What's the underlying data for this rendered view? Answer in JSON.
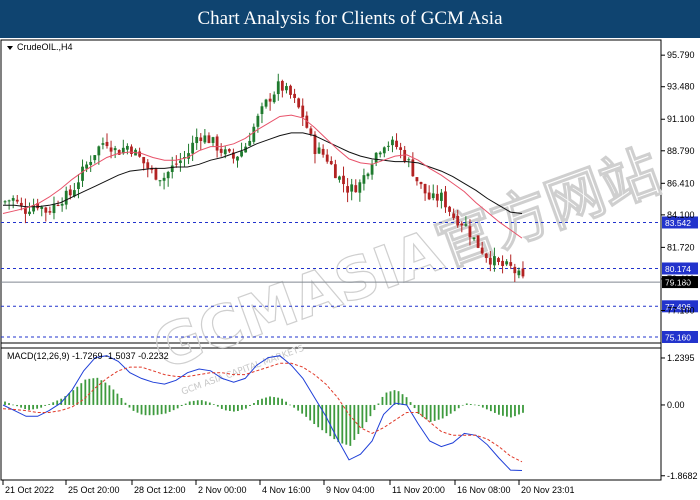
{
  "header": {
    "title": "Chart Analysis for Clients of GCM Asia"
  },
  "watermark": {
    "main": "GCMASIA官方网站",
    "sub": "GCM ASIA CAPITAL MARKETS"
  },
  "colors": {
    "header_bg": "#0f4470",
    "bull": "#1f7a2e",
    "bear": "#b22222",
    "ma_fast": "#e8526a",
    "ma_slow": "#111111",
    "level_line": "#2233cc",
    "macd_line": "#1f3fd8",
    "signal_line": "#e03a2a",
    "histogram": "#3d9a3d",
    "current_price": "#808890"
  },
  "chart_data": {
    "type": "candlestick",
    "symbol_label": "CrudeOIL.,H4",
    "y_ticks": [
      "95.790",
      "93.480",
      "91.100",
      "88.790",
      "86.410",
      "84.100",
      "81.720",
      "79.410",
      "77.100"
    ],
    "y_range": [
      74.72,
      96.9
    ],
    "x_ticks": [
      "21 Oct 2022",
      "25 Oct 20:00",
      "28 Oct 12:00",
      "2 Nov 00:00",
      "4 Nov 16:00",
      "9 Nov 04:00",
      "11 Nov 20:00",
      "16 Nov 08:00",
      "20 Nov 23:01"
    ],
    "levels": [
      {
        "label": "83.542",
        "value": 83.542
      },
      {
        "label": "80.174",
        "value": 80.174
      },
      {
        "label": "77.406",
        "value": 77.406
      },
      {
        "label": "75.160",
        "value": 75.16
      }
    ],
    "current_price": {
      "label": "79.180",
      "value": 79.18
    },
    "price_path": [
      85.0,
      85.3,
      84.4,
      85.0,
      84.3,
      85.2,
      85.6,
      87.2,
      88.6,
      89.6,
      88.7,
      89.2,
      88.2,
      87.2,
      86.8,
      87.8,
      88.4,
      90.0,
      89.6,
      88.8,
      88.2,
      89.0,
      90.9,
      92.5,
      93.6,
      92.8,
      91.4,
      89.0,
      88.4,
      87.0,
      85.9,
      86.4,
      88.2,
      89.4,
      89.2,
      88.2,
      86.4,
      85.2,
      85.4,
      84.0,
      83.4,
      82.0,
      81.0,
      80.4,
      80.2,
      79.3
    ],
    "ma_fast": [
      84.2,
      84.4,
      84.6,
      84.9,
      85.4,
      86.0,
      86.7,
      87.3,
      87.8,
      88.3,
      88.6,
      88.7,
      88.6,
      88.3,
      88.1,
      88.1,
      88.3,
      88.8,
      89.1,
      89.1,
      89.3,
      89.7,
      90.3,
      90.8,
      91.3,
      91.4,
      91.2,
      90.5,
      89.7,
      88.9,
      88.2,
      87.9,
      87.8,
      88.1,
      88.4,
      88.5,
      88.1,
      87.5,
      87.0,
      86.4,
      85.8,
      85.0,
      84.3,
      83.6,
      83.0,
      82.4
    ],
    "ma_slow": [
      84.8,
      84.8,
      84.7,
      84.7,
      84.8,
      85.0,
      85.4,
      85.8,
      86.2,
      86.6,
      87.0,
      87.3,
      87.4,
      87.5,
      87.5,
      87.6,
      87.6,
      87.8,
      88.1,
      88.3,
      88.6,
      88.9,
      89.3,
      89.6,
      89.9,
      90.1,
      90.1,
      89.9,
      89.5,
      89.1,
      88.7,
      88.4,
      88.2,
      88.1,
      88.0,
      88.0,
      87.9,
      87.6,
      87.3,
      86.9,
      86.4,
      85.9,
      85.3,
      84.8,
      84.3,
      84.2
    ],
    "macd": {
      "label": "MACD(12,26,9) -1.7269 -1.5037 -0.2232",
      "params": "12,26,9",
      "main": -1.7269,
      "signal": -1.5037,
      "histogram": -0.2232,
      "y_ticks": [
        "1.2395",
        "0.00",
        "-1.8682"
      ],
      "y_range": [
        -1.98,
        1.45
      ],
      "macd_line": [
        0.0,
        -0.15,
        -0.3,
        -0.3,
        -0.15,
        0.05,
        0.4,
        0.9,
        1.25,
        1.3,
        1.15,
        0.85,
        0.7,
        0.6,
        0.55,
        0.65,
        0.85,
        0.95,
        0.9,
        0.7,
        0.6,
        0.7,
        1.05,
        1.25,
        1.3,
        1.05,
        0.7,
        0.2,
        -0.3,
        -0.9,
        -1.45,
        -1.3,
        -0.95,
        -0.25,
        0.05,
        0.0,
        -0.5,
        -0.95,
        -1.1,
        -1.0,
        -0.75,
        -0.8,
        -1.05,
        -1.4,
        -1.72,
        -1.73
      ],
      "signal_line": [
        -0.1,
        -0.12,
        -0.15,
        -0.2,
        -0.2,
        -0.15,
        -0.05,
        0.15,
        0.45,
        0.7,
        0.9,
        1.0,
        1.0,
        0.9,
        0.8,
        0.75,
        0.75,
        0.8,
        0.85,
        0.85,
        0.8,
        0.8,
        0.9,
        1.0,
        1.1,
        1.1,
        1.0,
        0.8,
        0.55,
        0.2,
        -0.25,
        -0.6,
        -0.75,
        -0.6,
        -0.4,
        -0.2,
        -0.2,
        -0.45,
        -0.7,
        -0.8,
        -0.8,
        -0.8,
        -0.9,
        -1.1,
        -1.35,
        -1.5
      ]
    },
    "title": "",
    "xlabel": "",
    "ylabel": ""
  }
}
